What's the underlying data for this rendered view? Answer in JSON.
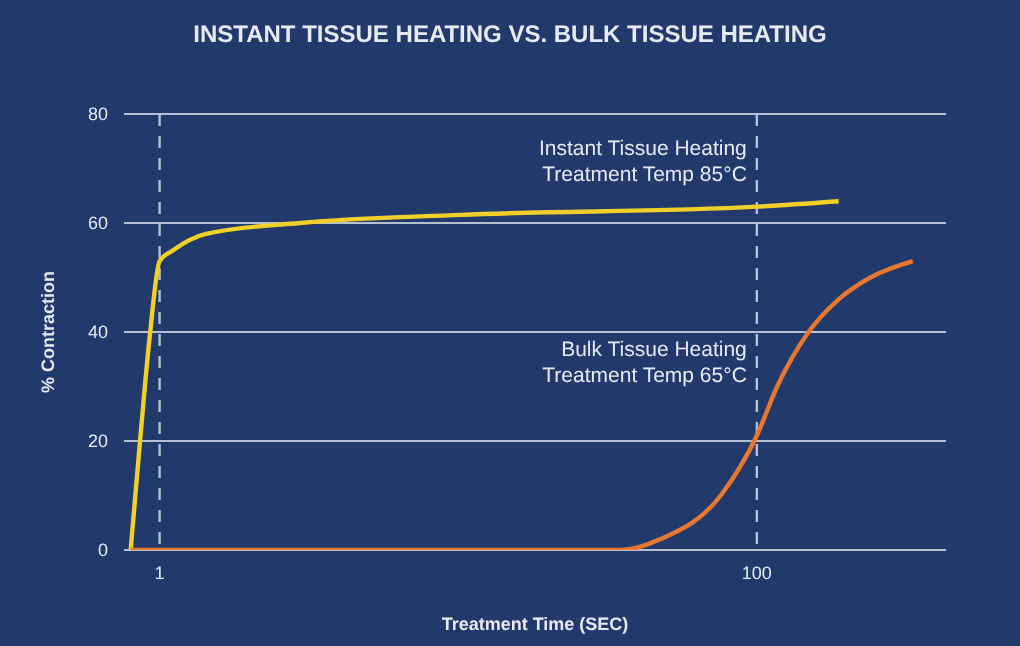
{
  "chart_data": {
    "type": "line",
    "title": "INSTANT TISSUE HEATING VS. BULK TISSUE HEATING",
    "xlabel": "Treatment Time (SEC)",
    "ylabel": "% Contraction",
    "log": "x",
    "grid": true,
    "xlim": [
      0.76,
      430
    ],
    "xticks": [
      1,
      100
    ],
    "ylim": [
      0,
      80
    ],
    "yticks": [
      0,
      20,
      40,
      60,
      80
    ],
    "series": [
      {
        "name": "Instant Tissue Heating\nTreatment Temp 85°C",
        "color": "#f2d02a",
        "x": [
          0.8,
          0.86,
          0.93,
          1,
          1.11,
          1.43,
          2.95,
          10.2,
          100,
          188
        ],
        "values": [
          0,
          20,
          40,
          53,
          55,
          58,
          60,
          61.5,
          63,
          64
        ]
      },
      {
        "name": "Bulk Tissue Heating\nTreatment Temp 65°C",
        "color": "#e8772e",
        "x": [
          0.8,
          35,
          47.6,
          75.7,
          100,
          117,
          149,
          188,
          240,
          333
        ],
        "values": [
          0,
          0,
          2,
          10,
          21,
          30,
          40,
          46,
          50,
          53
        ]
      }
    ]
  }
}
